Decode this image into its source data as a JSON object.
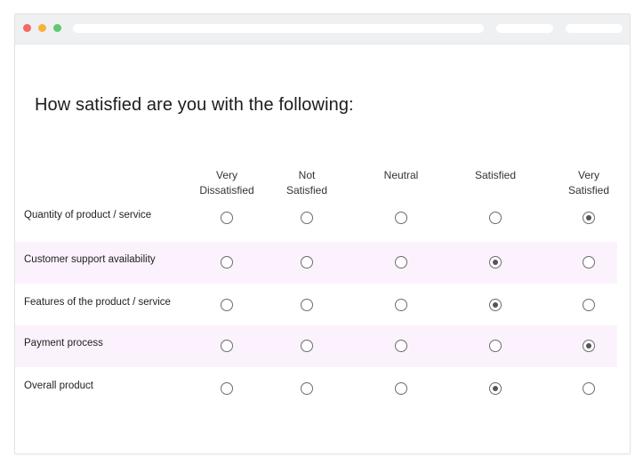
{
  "survey": {
    "question": "How satisfied are you with the following:",
    "columns": [
      [
        "Very",
        "Dissatisfied"
      ],
      [
        "Not",
        "Satisfied"
      ],
      [
        "Neutral"
      ],
      [
        "Satisfied"
      ],
      [
        "Very",
        "Satisfied"
      ]
    ],
    "rows": [
      {
        "label": "Quantity of product / service",
        "selected": 4
      },
      {
        "label": "Customer support availability",
        "selected": 3
      },
      {
        "label": "Features of the product / service",
        "selected": 3
      },
      {
        "label": "Payment process",
        "selected": 4
      },
      {
        "label": "Overall product",
        "selected": 3
      }
    ]
  },
  "colors": {
    "traffic_red": "#f26a64",
    "traffic_yellow": "#f7b23d",
    "traffic_green": "#5fc872",
    "alt_row": "#fcf2fd"
  }
}
